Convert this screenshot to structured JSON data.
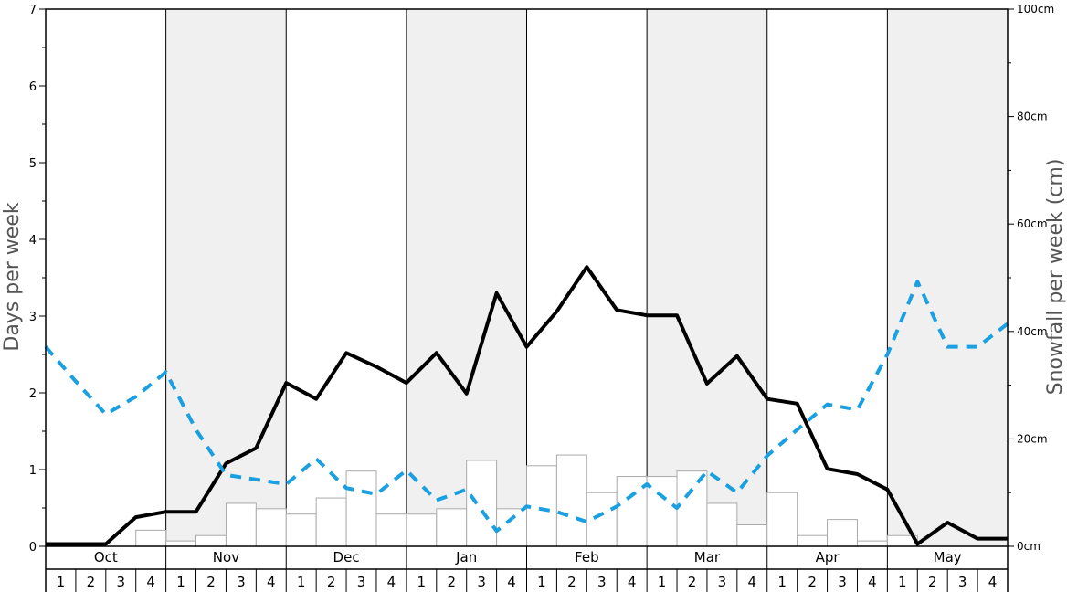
{
  "chart_data": {
    "type": "bar+line",
    "ylabel_left": "Days per week",
    "ylabel_right": "Snowfall per week (cm)",
    "ylim_left": [
      0,
      7
    ],
    "ylim_right": [
      0,
      100
    ],
    "left_ticks": [
      "0",
      "1",
      "2",
      "3",
      "4",
      "5",
      "6",
      "7"
    ],
    "right_ticks": [
      "0cm",
      "20cm",
      "40cm",
      "60cm",
      "80cm",
      "100cm"
    ],
    "months": [
      "Oct",
      "Nov",
      "Dec",
      "Jan",
      "Feb",
      "Mar",
      "Apr",
      "May"
    ],
    "weeks": [
      "1",
      "2",
      "3",
      "4"
    ],
    "shaded_months": [
      "Nov",
      "Jan",
      "Mar",
      "May"
    ],
    "colors": {
      "shade": "#f0f0f0",
      "days_line": "#000000",
      "dashed_line": "#1a9fe0",
      "bar_fill": "#ffffff",
      "bar_stroke": "#aaaaaa"
    },
    "series": [
      {
        "kind": "bar",
        "axis": "right",
        "values": [
          0,
          0,
          0,
          3,
          1,
          2,
          8,
          7,
          6,
          9,
          14,
          6,
          6,
          7,
          16,
          7,
          15,
          17,
          10,
          13,
          13,
          14,
          8,
          4,
          10,
          2,
          5,
          1,
          2,
          0,
          0,
          0
        ]
      },
      {
        "kind": "line",
        "axis": "left",
        "style": "solid",
        "values": [
          0.03,
          0.03,
          0.03,
          0.38,
          0.45,
          0.45,
          1.08,
          1.28,
          2.13,
          1.92,
          2.52,
          2.34,
          2.13,
          2.52,
          1.99,
          3.3,
          2.6,
          3.06,
          3.64,
          3.08,
          3.01,
          3.01,
          2.12,
          2.48,
          1.92,
          1.86,
          1.01,
          0.94,
          0.74,
          0.03,
          0.31,
          0.1,
          0.1
        ]
      },
      {
        "kind": "line",
        "axis": "left",
        "style": "dashed",
        "values": [
          2.6,
          2.15,
          1.72,
          1.95,
          2.27,
          1.52,
          0.93,
          0.87,
          0.81,
          1.14,
          0.76,
          0.68,
          0.99,
          0.6,
          0.74,
          0.2,
          0.52,
          0.45,
          0.32,
          0.52,
          0.81,
          0.5,
          0.98,
          0.7,
          1.18,
          1.52,
          1.85,
          1.78,
          2.5,
          3.45,
          2.6,
          2.6,
          2.9
        ]
      }
    ]
  }
}
